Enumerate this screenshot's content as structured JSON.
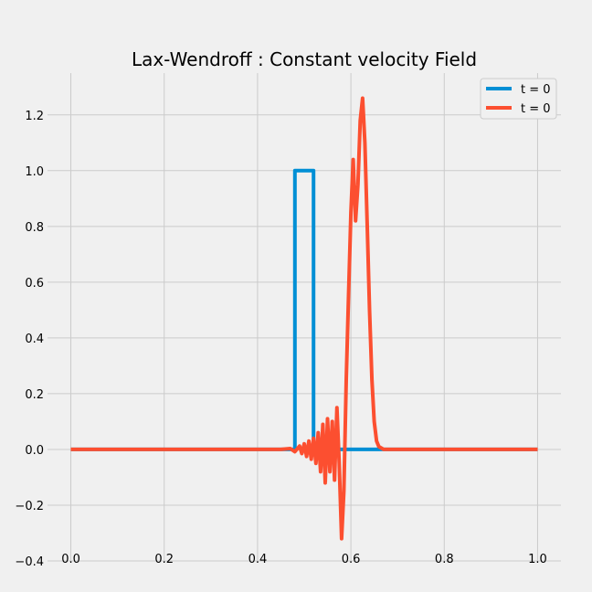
{
  "chart_data": {
    "type": "line",
    "title": "Lax-Wendroff : Constant velocity Field",
    "xlabel": "",
    "ylabel": "",
    "xlim": [
      -0.05,
      1.05
    ],
    "ylim": [
      -0.4,
      1.35
    ],
    "grid": true,
    "legend_position": "top-right",
    "x_ticks": [
      0.0,
      0.2,
      0.4,
      0.6,
      0.8,
      1.0
    ],
    "x_tick_labels": [
      "0.0",
      "0.2",
      "0.4",
      "0.6",
      "0.8",
      "1.0"
    ],
    "y_ticks": [
      -0.4,
      -0.2,
      0.0,
      0.2,
      0.4,
      0.6,
      0.8,
      1.0,
      1.2
    ],
    "y_tick_labels": [
      "−0.4",
      "−0.2",
      "0.0",
      "0.2",
      "0.4",
      "0.6",
      "0.8",
      "1.0",
      "1.2"
    ],
    "series": [
      {
        "name": "t = 0",
        "color": "#008fd5",
        "x": [
          0.0,
          0.48,
          0.48,
          0.52,
          0.52,
          1.0
        ],
        "y": [
          0.0,
          0.0,
          1.0,
          1.0,
          0.0,
          0.0
        ]
      },
      {
        "name": "t = 0",
        "color": "#fc4f30",
        "x": [
          0.0,
          0.45,
          0.47,
          0.48,
          0.49,
          0.495,
          0.5,
          0.505,
          0.51,
          0.515,
          0.52,
          0.525,
          0.53,
          0.535,
          0.54,
          0.545,
          0.55,
          0.555,
          0.56,
          0.565,
          0.57,
          0.575,
          0.58,
          0.585,
          0.59,
          0.595,
          0.6,
          0.605,
          0.61,
          0.615,
          0.62,
          0.625,
          0.63,
          0.635,
          0.64,
          0.645,
          0.65,
          0.655,
          0.66,
          0.67,
          0.7,
          1.0
        ],
        "y": [
          0.0,
          0.0,
          0.003,
          -0.008,
          0.012,
          -0.015,
          0.02,
          -0.025,
          0.03,
          -0.035,
          0.04,
          -0.05,
          0.06,
          -0.08,
          0.09,
          -0.12,
          0.11,
          -0.08,
          0.1,
          -0.11,
          0.15,
          -0.05,
          -0.32,
          -0.15,
          0.25,
          0.55,
          0.85,
          1.04,
          0.82,
          0.95,
          1.18,
          1.26,
          1.1,
          0.8,
          0.5,
          0.25,
          0.1,
          0.03,
          0.01,
          0.0,
          0.0,
          0.0
        ]
      }
    ]
  }
}
